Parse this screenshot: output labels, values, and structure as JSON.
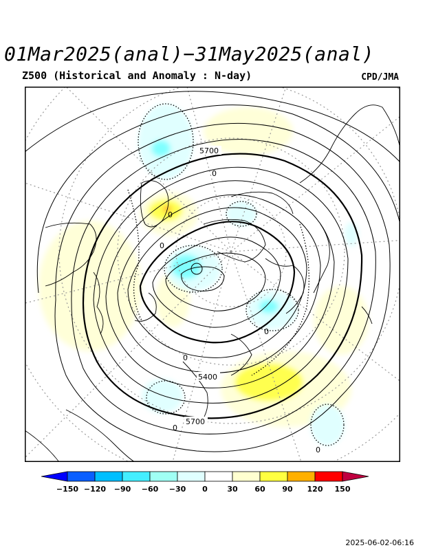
{
  "title": "01Mar2025(anal)−31May2025(anal)",
  "subtitle": "Z500 (Historical and Anomaly : N-day)",
  "credit": "CPD/JMA",
  "timestamp": "2025-06-02-06:16",
  "map_labels": {
    "c5700_top": "5700",
    "c5400": "5400",
    "c5700_bottom": "5700",
    "zero_1": "0",
    "zero_2": "0",
    "zero_3": "0",
    "zero_4": "0",
    "zero_5": "0",
    "zero_6": "0",
    "zero_7": "0"
  },
  "colorbar": {
    "ticks": [
      "−150",
      "−120",
      "−90",
      "−60",
      "−30",
      "0",
      "30",
      "60",
      "90",
      "120",
      "150"
    ],
    "colors": [
      "#0000ff",
      "#0a5fff",
      "#00bfff",
      "#44eeff",
      "#a0fff4",
      "#e0ffff",
      "#ffffff",
      "#ffffd0",
      "#ffff40",
      "#ffb000",
      "#ff0000",
      "#c00040"
    ]
  },
  "colors": {
    "positive_weak": "#ffffd8",
    "positive_mid": "#ffff50",
    "positive_strong": "#ffb030",
    "negative_weak": "#e0ffff",
    "negative_mid": "#80ffff",
    "contour": "#000000",
    "grid": "#999999"
  }
}
